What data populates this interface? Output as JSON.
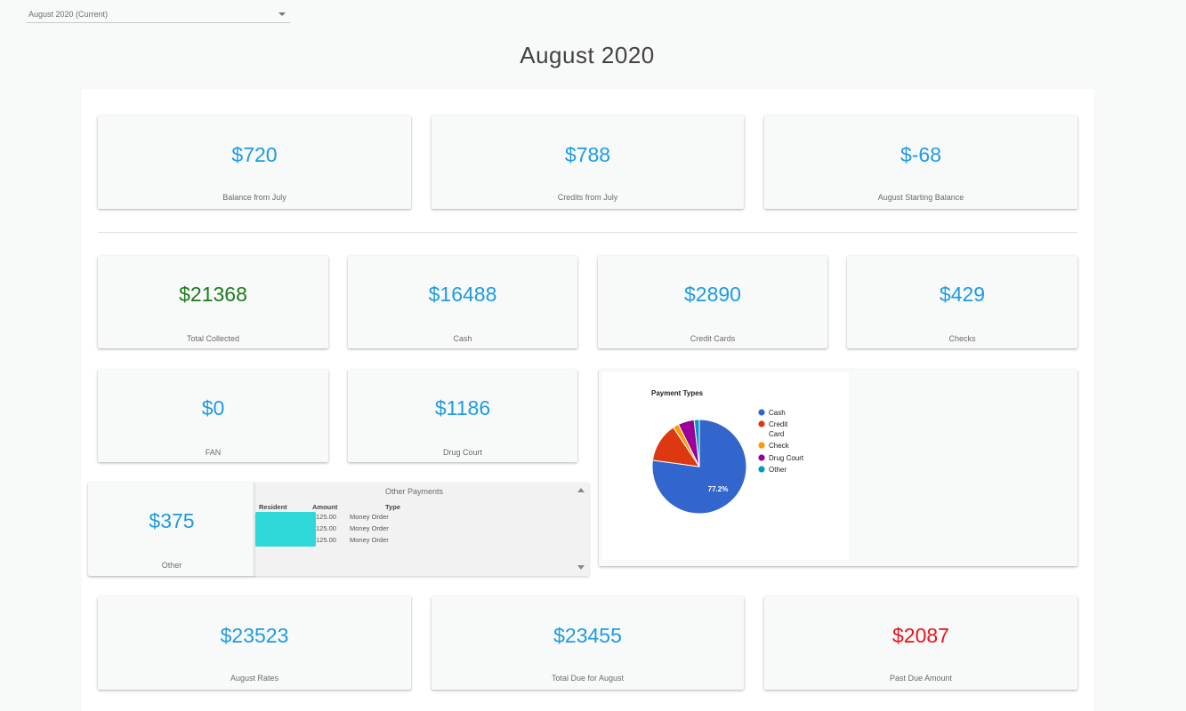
{
  "month_select": {
    "value": "August 2020 (Current)"
  },
  "page_title": "August 2020",
  "summary": [
    {
      "amount": "$720",
      "label": "Balance from July"
    },
    {
      "amount": "$788",
      "label": "Credits from July"
    },
    {
      "amount": "$-68",
      "label": "August Starting Balance"
    }
  ],
  "collected": [
    {
      "amount": "$21368",
      "label": "Total Collected"
    },
    {
      "amount": "$16488",
      "label": "Cash"
    },
    {
      "amount": "$2890",
      "label": "Credit Cards"
    },
    {
      "amount": "$429",
      "label": "Checks"
    }
  ],
  "other_sources": [
    {
      "amount": "$0",
      "label": "FAN"
    },
    {
      "amount": "$1186",
      "label": "Drug Court"
    },
    {
      "amount": "$375",
      "label": "Other"
    }
  ],
  "other_payments": {
    "title": "Other Payments",
    "columns": [
      "Resident",
      "Amount",
      "Type"
    ],
    "rows": [
      {
        "amount": "125.00",
        "type": "Money Order"
      },
      {
        "amount": "125.00",
        "type": "Money Order"
      },
      {
        "amount": "125.00",
        "type": "Money Order"
      }
    ]
  },
  "totals": [
    {
      "amount": "$23523",
      "label": "August Rates"
    },
    {
      "amount": "$23455",
      "label": "Total Due for August"
    },
    {
      "amount": "$2087",
      "label": "Past Due Amount"
    }
  ],
  "colors": {
    "accent": "#1e9be0",
    "positive": "#1d7a1d",
    "negative": "#e8131a",
    "redaction": "#2fd8d8"
  },
  "chart_data": {
    "type": "pie",
    "title": "Payment Types",
    "labels": [
      "Cash",
      "Credit Card",
      "Check",
      "Drug Court",
      "Other"
    ],
    "values": [
      16488,
      2890,
      429,
      1186,
      375
    ],
    "colors": [
      "#3366cc",
      "#dc3912",
      "#ff9900",
      "#990099",
      "#0099c6"
    ],
    "slice_label": "77.2%",
    "legend": "right"
  }
}
